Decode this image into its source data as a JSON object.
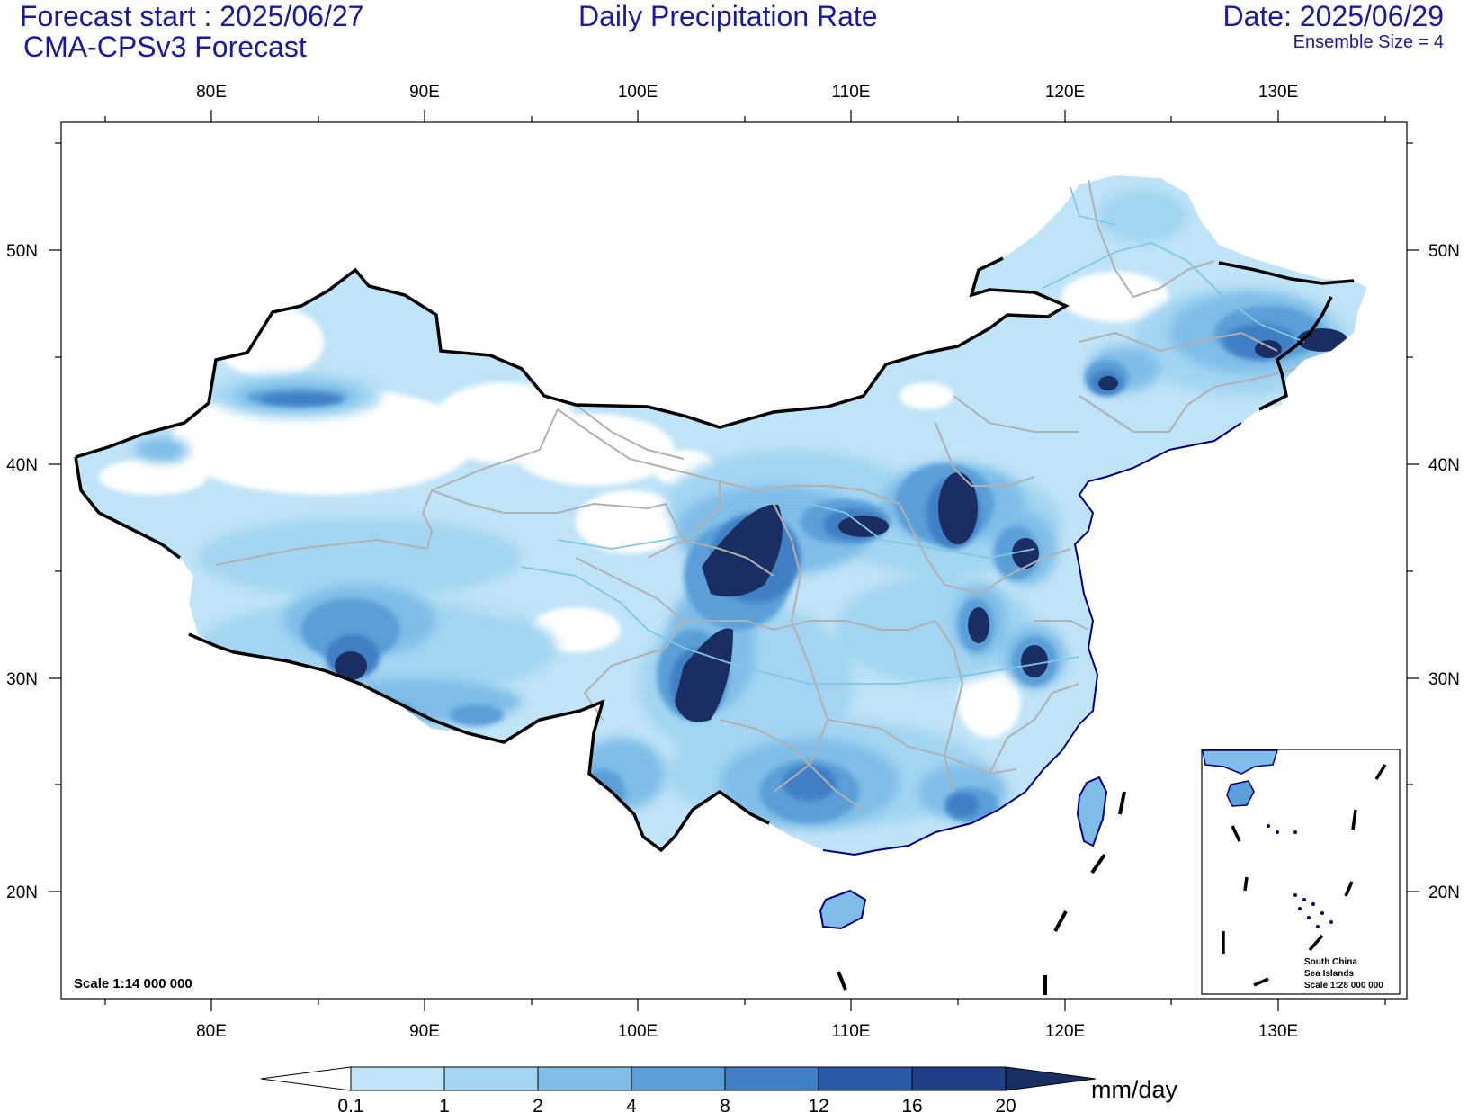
{
  "header": {
    "forecast_start": "Forecast start : 2025/06/27",
    "model": "CMA-CPSv3 Forecast",
    "title": "Daily Precipitation Rate",
    "date": "Date: 2025/06/29",
    "ensemble": "Ensemble Size = 4"
  },
  "map": {
    "lon_labels": [
      "80E",
      "90E",
      "100E",
      "110E",
      "120E",
      "130E"
    ],
    "lat_labels": [
      "50N",
      "40N",
      "30N",
      "20N"
    ],
    "scale_main": "Scale 1:14 000 000",
    "inset": {
      "line1": "South China",
      "line2": "Sea Islands",
      "line3": "Scale 1:28 000 000"
    }
  },
  "colorbar": {
    "levels": [
      "0.1",
      "1",
      "2",
      "4",
      "8",
      "12",
      "16",
      "20"
    ],
    "colors": [
      "#ffffff",
      "#bfe3f7",
      "#a3d5f2",
      "#7fbde8",
      "#5a9fd8",
      "#3f7fc4",
      "#2a5aa8",
      "#1f3f86",
      "#1b2e63"
    ],
    "unit": "mm/day"
  },
  "colors": {
    "header_text": "#1a1aa0",
    "border": "#000000",
    "province": "#b0b0b0",
    "coast": "#000080",
    "river": "#7ec8e3"
  }
}
